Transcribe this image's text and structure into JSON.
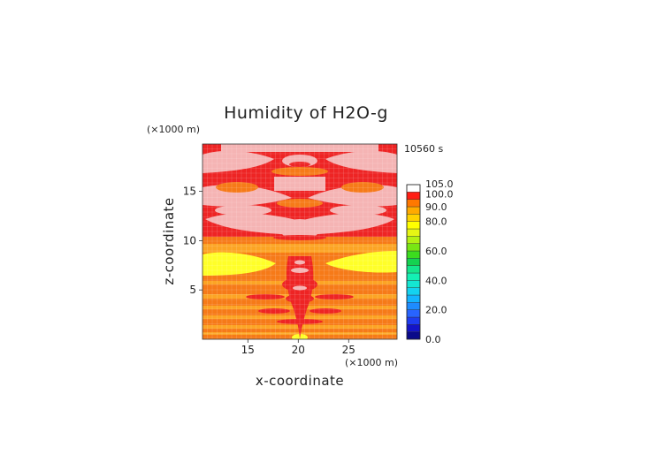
{
  "chart_data": {
    "type": "heatmap",
    "title": "Humidity of H2O-g",
    "time_label": "10560 s",
    "xlabel": "x-coordinate",
    "ylabel": "z-coordinate",
    "x_unit": "(×1000 m)",
    "y_unit": "(×1000 m)",
    "xlim": [
      10.5,
      29.8
    ],
    "ylim": [
      0,
      19.8
    ],
    "x_ticks": [
      15,
      20,
      25
    ],
    "y_ticks": [
      5,
      10,
      15
    ],
    "x_tick_labels": [
      "15",
      "20",
      "25"
    ],
    "y_tick_labels": [
      "5",
      "10",
      "15"
    ],
    "grid": true,
    "colorbar": {
      "labels": [
        "105.0",
        "100.0",
        "90.0",
        "80.0",
        "60.0",
        "40.0",
        "20.0",
        "0.0"
      ],
      "levels": [
        0,
        5,
        10,
        15,
        20,
        25,
        30,
        35,
        40,
        45,
        50,
        55,
        60,
        65,
        70,
        75,
        80,
        85,
        90,
        95,
        100,
        105
      ],
      "colors": [
        "#0a0a8a",
        "#1414c8",
        "#1e3cf0",
        "#2864ff",
        "#1e8cff",
        "#14b4ff",
        "#14d2f0",
        "#14e6d2",
        "#14f0b4",
        "#14e68c",
        "#14d250",
        "#3cdc1e",
        "#78e614",
        "#b4f014",
        "#e6f514",
        "#ffff00",
        "#ffd200",
        "#ffaa00",
        "#ff7800",
        "#ff1e14",
        "#ffffff"
      ],
      "top_color": "#ffffff"
    },
    "field_colors": {
      "very_high": "#f5b4b4",
      "high": "#ee2424",
      "mid": "#f67a18",
      "mid_low": "#fca424",
      "low": "#ffff28"
    }
  }
}
